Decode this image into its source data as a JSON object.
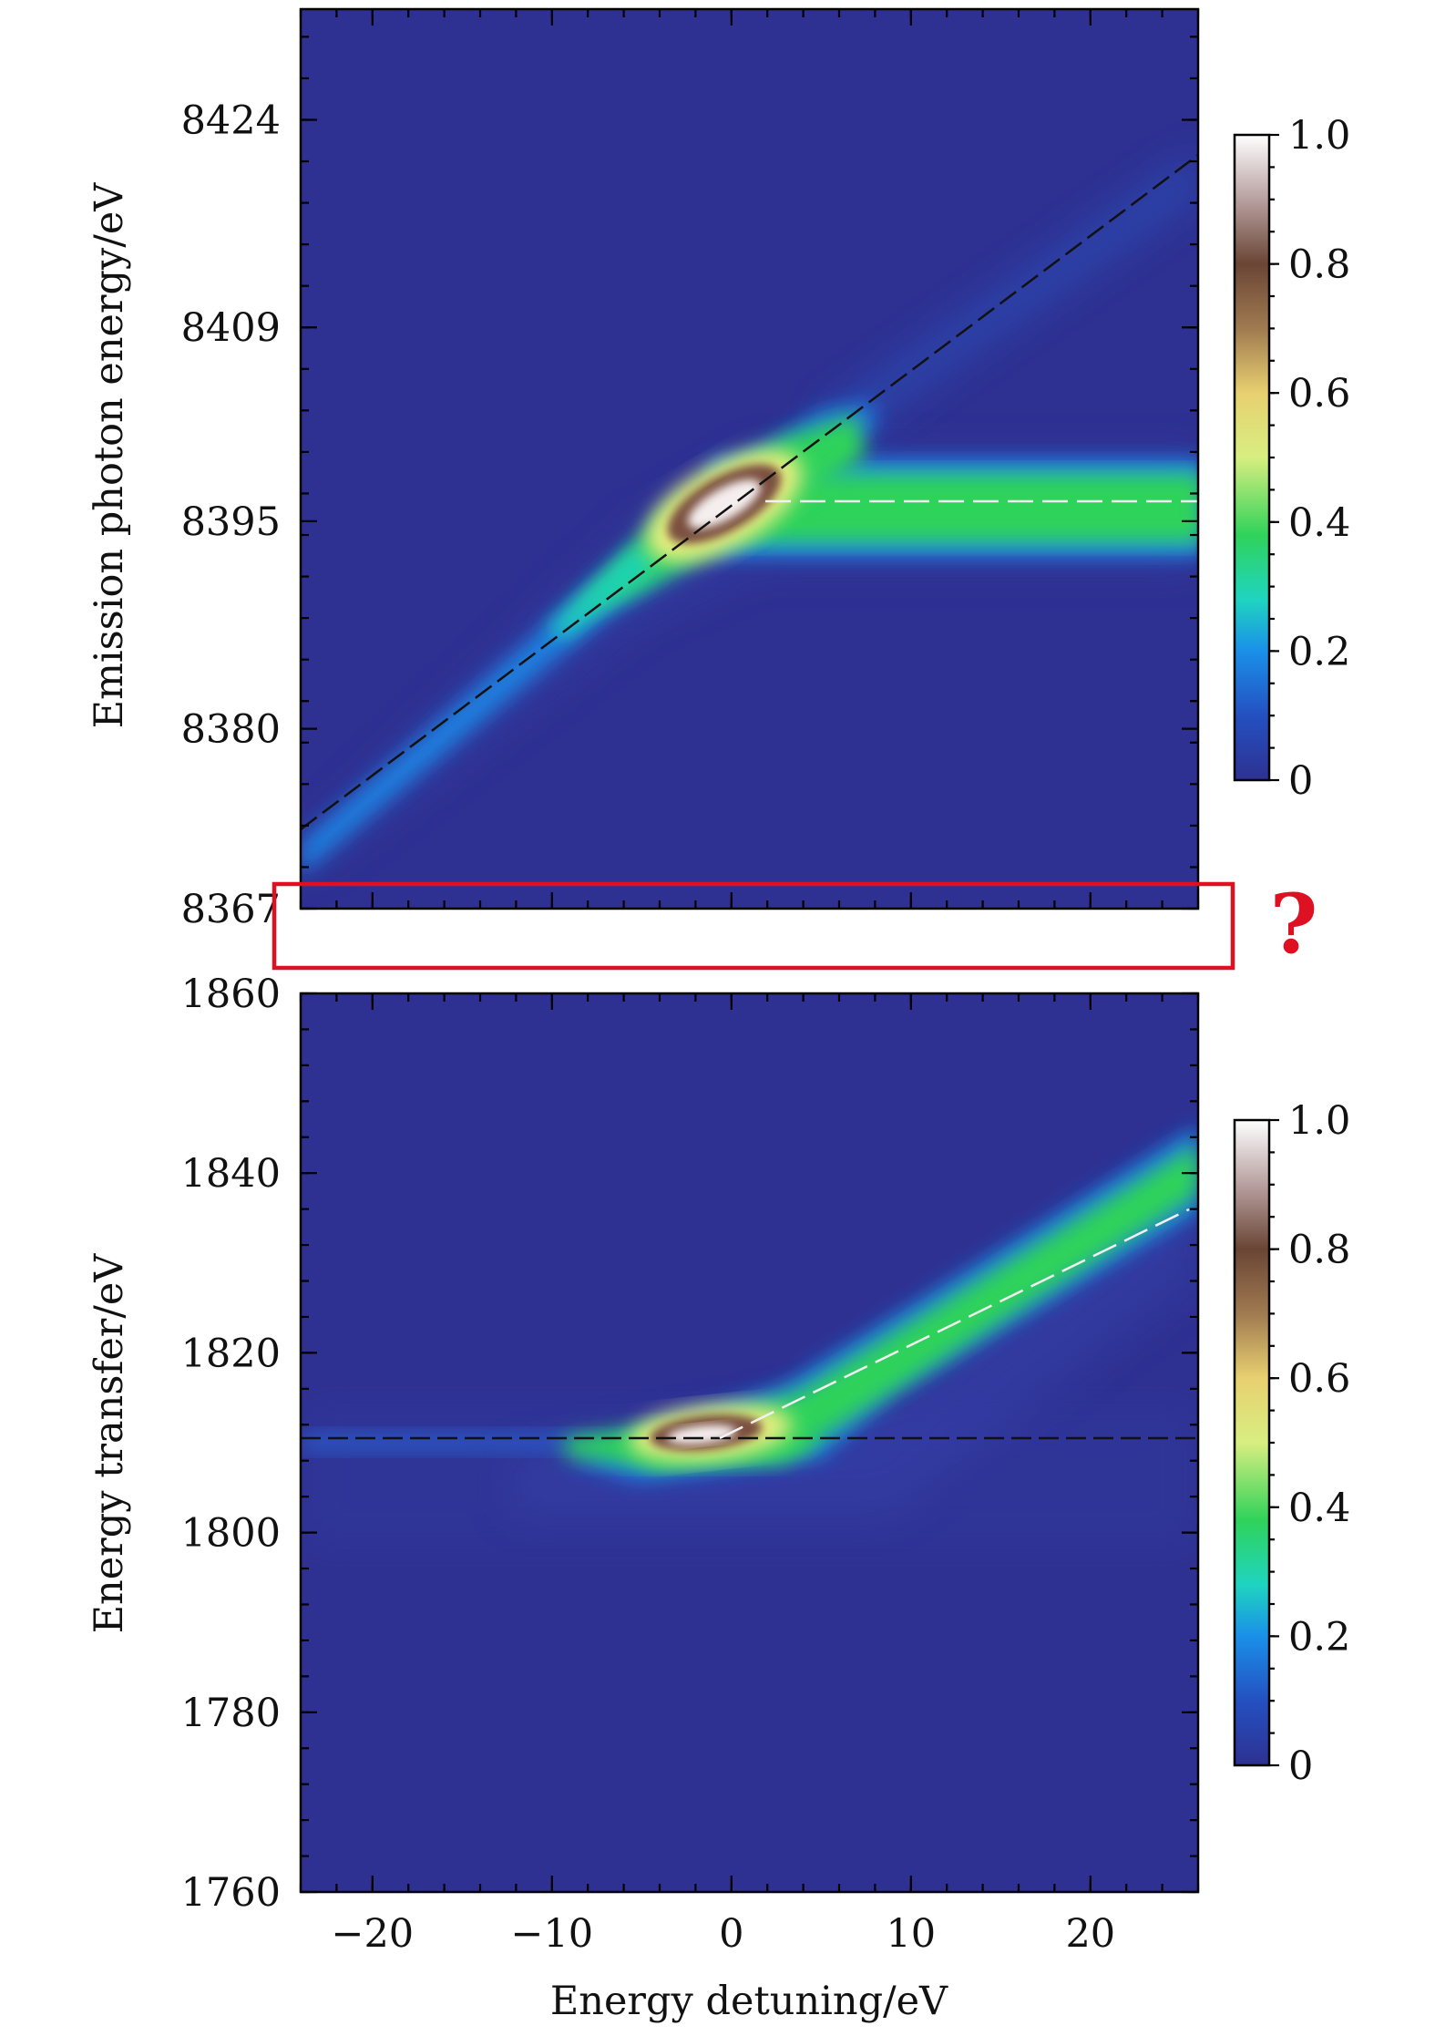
{
  "chart_data": [
    {
      "type": "heatmap",
      "name": "top-panel",
      "ylabel": "Emission photon energy/eV",
      "xlim": [
        -24,
        26
      ],
      "ylim": [
        8367,
        8432
      ],
      "yticks": [
        "8424",
        "8409",
        "8395",
        "8380",
        "8367"
      ],
      "ytick_values": [
        8424,
        8409,
        8395,
        8380,
        8367
      ],
      "xticks_values": [
        -20,
        -10,
        0,
        10,
        20
      ],
      "dashed_lines": [
        {
          "color": "#111111",
          "from": [
            -24,
            8373
          ],
          "to": [
            26,
            8423
          ]
        },
        {
          "color": "#f2f2f2",
          "from": [
            1,
            8396
          ],
          "to": [
            26,
            8396
          ]
        }
      ],
      "features": {
        "diagonal_branch": {
          "slope": 1,
          "offset": 8397
        },
        "horizontal_band": {
          "y": 8396
        },
        "peak": {
          "x": -0.5,
          "y": 8395.5
        }
      },
      "colorbar": {
        "ticks": [
          "1.0",
          "0.8",
          "0.6",
          "0.4",
          "0.2",
          "0"
        ],
        "values": [
          1.0,
          0.8,
          0.6,
          0.4,
          0.2,
          0
        ]
      }
    },
    {
      "type": "heatmap",
      "name": "bottom-panel",
      "xlabel": "Energy detuning/eV",
      "ylabel": "Energy transfer/eV",
      "xlim": [
        -24,
        26
      ],
      "ylim": [
        1760,
        1860
      ],
      "yticks": [
        "1860",
        "1840",
        "1820",
        "1800",
        "1780",
        "1760"
      ],
      "ytick_values": [
        1860,
        1840,
        1820,
        1800,
        1780,
        1760
      ],
      "xticks": [
        "−20",
        "−10",
        "0",
        "10",
        "20"
      ],
      "xtick_values": [
        -20,
        -10,
        0,
        10,
        20
      ],
      "dashed_lines": [
        {
          "color": "#111111",
          "from": [
            -24,
            1810
          ],
          "to": [
            26,
            1810
          ]
        },
        {
          "color": "#f2f2f2",
          "from": [
            0,
            1810
          ],
          "to": [
            26,
            1836
          ]
        }
      ],
      "features": {
        "horizontal_branch": {
          "y": 1810
        },
        "diagonal_branch": {
          "slope": 1,
          "offset": 1810
        },
        "peak": {
          "x": -1,
          "y": 1810.5
        }
      },
      "colorbar": {
        "ticks": [
          "1.0",
          "0.8",
          "0.6",
          "0.4",
          "0.2",
          "0"
        ],
        "values": [
          1.0,
          0.8,
          0.6,
          0.4,
          0.2,
          0
        ]
      }
    }
  ],
  "annotation": {
    "symbol": "?",
    "color": "#dd1122"
  },
  "colormap": [
    "#2e3192",
    "#1e6fd9",
    "#1fd4c0",
    "#2fd35a",
    "#f2f080",
    "#caa060",
    "#6a4030",
    "#a08080",
    "#ffffff"
  ]
}
